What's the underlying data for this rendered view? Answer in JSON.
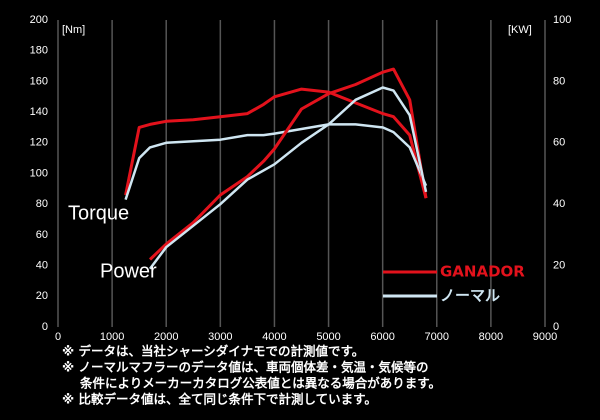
{
  "chart_data": {
    "type": "line",
    "y_label": "[Nm]",
    "y2_label": "[KW]",
    "x": [
      1250,
      1500,
      1700,
      2000,
      2500,
      3000,
      3500,
      3800,
      4000,
      4500,
      5000,
      5500,
      6000,
      6200,
      6500,
      6800
    ],
    "series": [
      {
        "name": "GANADOR",
        "color": "#e3121c",
        "values": [
          86,
          130,
          132,
          134,
          135,
          137,
          139,
          145,
          150,
          155,
          153,
          146,
          139,
          137,
          125,
          84
        ]
      },
      {
        "name": "ノーマル",
        "color": "#cfe6f2",
        "values": [
          83,
          110,
          117,
          120,
          121,
          122,
          125,
          125,
          126,
          129,
          132,
          132,
          130,
          127,
          117,
          92
        ]
      },
      {
        "color": "#e3121c",
        "axis": "y2",
        "values": [
          null,
          null,
          22,
          27,
          34,
          43,
          49,
          54,
          58,
          71,
          76,
          79,
          83,
          84,
          74,
          42
        ]
      },
      {
        "color": "#cfe6f2",
        "axis": "y2",
        "values": [
          null,
          null,
          19,
          26,
          33,
          40,
          48,
          51,
          53,
          60,
          66,
          74,
          78,
          77,
          69,
          44
        ]
      }
    ],
    "annotations": [
      "Torque",
      "Power"
    ],
    "xlim": [
      0,
      9000
    ],
    "xticks": [
      0,
      1000,
      2000,
      3000,
      4000,
      5000,
      6000,
      7000,
      8000,
      9000
    ],
    "ylim": [
      0,
      200
    ],
    "yticks": [
      0,
      20,
      40,
      60,
      80,
      100,
      120,
      140,
      160,
      180,
      200
    ],
    "y2lim": [
      0,
      100
    ],
    "y2ticks": [
      0,
      20,
      40,
      60,
      80,
      100
    ],
    "grid": true,
    "notes": [
      "※ データは、当社シャーシダイナモでの計測値です。",
      "※ ノーマルマフラーのデータ値は、車両個体差・気温・気候等の",
      "条件によりメーカーカタログ公表値とは異なる場合があります。",
      "※ 比較データ値は、全て同じ条件下で計測しています。"
    ]
  }
}
